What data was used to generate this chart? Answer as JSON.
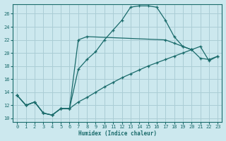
{
  "xlabel": "Humidex (Indice chaleur)",
  "xlim": [
    -0.5,
    23.5
  ],
  "ylim": [
    9.5,
    27.5
  ],
  "xticks": [
    0,
    1,
    2,
    3,
    4,
    5,
    6,
    7,
    8,
    9,
    10,
    11,
    12,
    13,
    14,
    15,
    16,
    17,
    18,
    19,
    20,
    21,
    22,
    23
  ],
  "yticks": [
    10,
    12,
    14,
    16,
    18,
    20,
    22,
    24,
    26
  ],
  "bg_color": "#cce8ee",
  "grid_color": "#aacdd5",
  "line_color": "#1a6b6b",
  "curve1_x": [
    0,
    1,
    2,
    3,
    4,
    5,
    6,
    7,
    8,
    9,
    10,
    11,
    12,
    13,
    14,
    15,
    16,
    17,
    18,
    19,
    20
  ],
  "curve1_y": [
    13.5,
    12.0,
    12.5,
    10.8,
    10.5,
    11.5,
    11.5,
    17.5,
    19.0,
    20.2,
    22.0,
    23.5,
    25.0,
    27.0,
    27.2,
    27.2,
    27.0,
    25.0,
    22.5,
    21.0,
    20.5
  ],
  "curve2_x": [
    0,
    1,
    2,
    3,
    4,
    5,
    6,
    7,
    8,
    17,
    18,
    19,
    20,
    21,
    22,
    23
  ],
  "curve2_y": [
    13.5,
    12.0,
    12.5,
    10.8,
    10.5,
    11.5,
    11.5,
    22.0,
    22.5,
    22.0,
    21.5,
    21.0,
    20.5,
    19.2,
    19.0,
    19.5
  ],
  "curve3_x": [
    0,
    1,
    2,
    3,
    4,
    5,
    6,
    7,
    8,
    9,
    10,
    11,
    12,
    13,
    14,
    15,
    16,
    17,
    18,
    19,
    20,
    21,
    22,
    23
  ],
  "curve3_y": [
    13.5,
    12.0,
    12.5,
    10.8,
    10.5,
    11.5,
    11.5,
    12.5,
    13.2,
    14.0,
    14.8,
    15.5,
    16.2,
    16.8,
    17.4,
    18.0,
    18.5,
    19.0,
    19.5,
    20.0,
    20.5,
    21.0,
    18.8,
    19.5
  ]
}
